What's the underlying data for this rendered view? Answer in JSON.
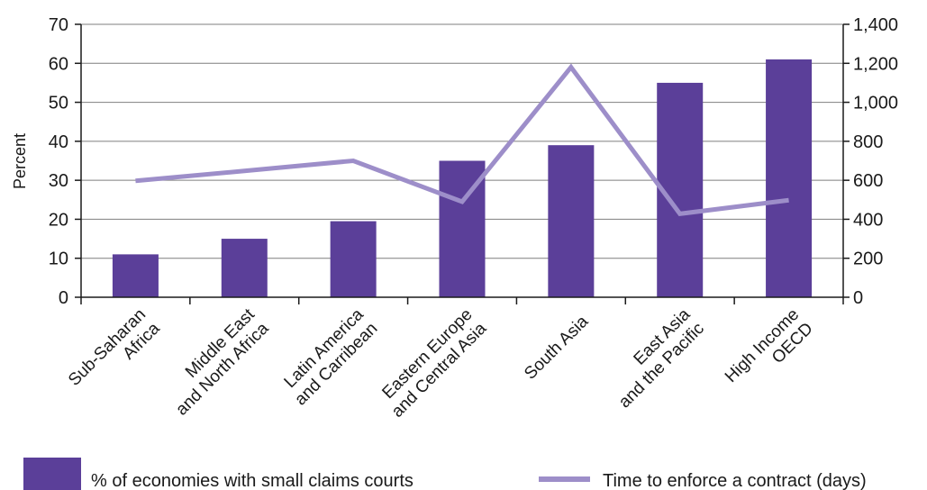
{
  "chart_data": {
    "type": "bar",
    "categories": [
      [
        "Sub-Saharan",
        "Africa"
      ],
      [
        "Middle East",
        "and North Africa"
      ],
      [
        "Latin America",
        "and Carribean"
      ],
      [
        "Eastern Europe",
        "and Central Asia"
      ],
      [
        "South Asia"
      ],
      [
        "East Asia",
        "and the Pacific"
      ],
      [
        "High Income",
        "OECD"
      ]
    ],
    "series": [
      {
        "name": "% of economies with small claims courts",
        "kind": "bar",
        "axis": "left",
        "values": [
          11,
          15,
          19.5,
          35,
          39,
          55,
          61
        ]
      },
      {
        "name": "Time to enforce a contract (days)",
        "kind": "line",
        "axis": "right",
        "values": [
          597,
          648,
          700,
          490,
          1180,
          428,
          498
        ]
      }
    ],
    "ylabel": "Percent",
    "ylim": [
      0,
      70
    ],
    "y2lim": [
      0,
      1400
    ],
    "yticks": [
      "0",
      "10",
      "20",
      "30",
      "40",
      "50",
      "60",
      "70"
    ],
    "y2ticks": [
      "0",
      "200",
      "400",
      "600",
      "800",
      "1,000",
      "1,200",
      "1,400"
    ],
    "grid": true,
    "legend": "bottom",
    "colors": {
      "bar": "#5b3f99",
      "line": "#9d8ec9",
      "grid": "#7f7f7f",
      "axis": "#1a1a1a"
    }
  }
}
